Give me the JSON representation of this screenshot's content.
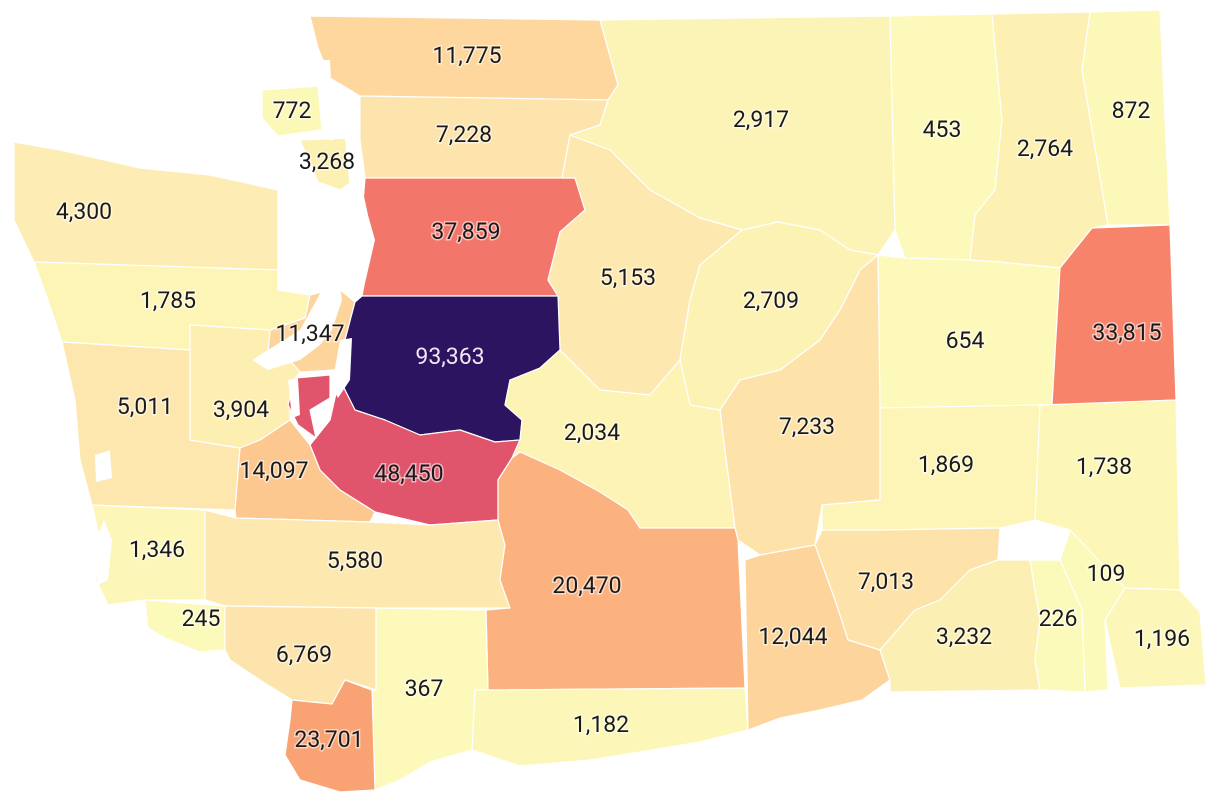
{
  "colors": {
    "very_light": "#fcf8b8",
    "light": "#fdeab4",
    "light_mid": "#fddaa0",
    "mid": "#fcc490",
    "orange": "#fbb17e",
    "orange_dark": "#f89770",
    "salmon": "#f47f6a",
    "rose": "#e35a6a",
    "crimson": "#e0456a",
    "deep_purple": "#2d1460"
  },
  "counties": [
    {
      "id": "whatcom",
      "value": "11,775",
      "color": "#fdd79e"
    },
    {
      "id": "san-juan",
      "value": "772",
      "color": "#fcf8b8"
    },
    {
      "id": "skagit",
      "value": "7,228",
      "color": "#fde4ac"
    },
    {
      "id": "island",
      "value": "3,268",
      "color": "#fcf0b3"
    },
    {
      "id": "okanogan",
      "value": "2,917",
      "color": "#fcf3b6"
    },
    {
      "id": "ferry",
      "value": "453",
      "color": "#fcf9ba"
    },
    {
      "id": "stevens",
      "value": "2,764",
      "color": "#fcf0b3"
    },
    {
      "id": "pend-oreille",
      "value": "872",
      "color": "#fcf8b8"
    },
    {
      "id": "clallam",
      "value": "4,300",
      "color": "#fdedb4"
    },
    {
      "id": "snohomish",
      "value": "37,859",
      "color": "#f2776a"
    },
    {
      "id": "chelan",
      "value": "5,153",
      "color": "#fde8b0"
    },
    {
      "id": "jefferson",
      "value": "1,785",
      "color": "#fcf5b6"
    },
    {
      "id": "douglas",
      "value": "2,709",
      "color": "#fcf2b4"
    },
    {
      "id": "kitsap",
      "value": "11,347",
      "color": "#fdd59c"
    },
    {
      "id": "king",
      "value": "93,363",
      "color": "#2d1460"
    },
    {
      "id": "lincoln",
      "value": "654",
      "color": "#fcf9ba"
    },
    {
      "id": "spokane",
      "value": "33,815",
      "color": "#f6836a"
    },
    {
      "id": "grays-harbor",
      "value": "5,011",
      "color": "#fde7ae"
    },
    {
      "id": "mason",
      "value": "3,904",
      "color": "#fdeeb2"
    },
    {
      "id": "pierce",
      "value": "48,450",
      "color": "#e0556b"
    },
    {
      "id": "kittitas",
      "value": "2,034",
      "color": "#fcf3b5"
    },
    {
      "id": "grant",
      "value": "7,233",
      "color": "#fde3aa"
    },
    {
      "id": "thurston",
      "value": "14,097",
      "color": "#fcc890"
    },
    {
      "id": "adams",
      "value": "1,869",
      "color": "#fcf5b7"
    },
    {
      "id": "whitman",
      "value": "1,738",
      "color": "#fcf6b7"
    },
    {
      "id": "pacific",
      "value": "1,346",
      "color": "#fcf7b8"
    },
    {
      "id": "lewis",
      "value": "5,580",
      "color": "#fde8b0"
    },
    {
      "id": "yakima",
      "value": "20,470",
      "color": "#fbb27e"
    },
    {
      "id": "franklin",
      "value": "7,013",
      "color": "#fde3aa"
    },
    {
      "id": "garfield",
      "value": "109",
      "color": "#fcfabb"
    },
    {
      "id": "wahkiakum",
      "value": "245",
      "color": "#fcfabb"
    },
    {
      "id": "cowlitz",
      "value": "6,769",
      "color": "#fde4ac"
    },
    {
      "id": "benton",
      "value": "12,044",
      "color": "#fcd49c"
    },
    {
      "id": "walla-walla",
      "value": "3,232",
      "color": "#fcefb3"
    },
    {
      "id": "columbia",
      "value": "226",
      "color": "#fcfabb"
    },
    {
      "id": "asotin",
      "value": "1,196",
      "color": "#fcf7b8"
    },
    {
      "id": "skamania",
      "value": "367",
      "color": "#fcf9ba"
    },
    {
      "id": "clark",
      "value": "23,701",
      "color": "#f9a273"
    },
    {
      "id": "klickitat",
      "value": "1,182",
      "color": "#fcf7b8"
    }
  ]
}
